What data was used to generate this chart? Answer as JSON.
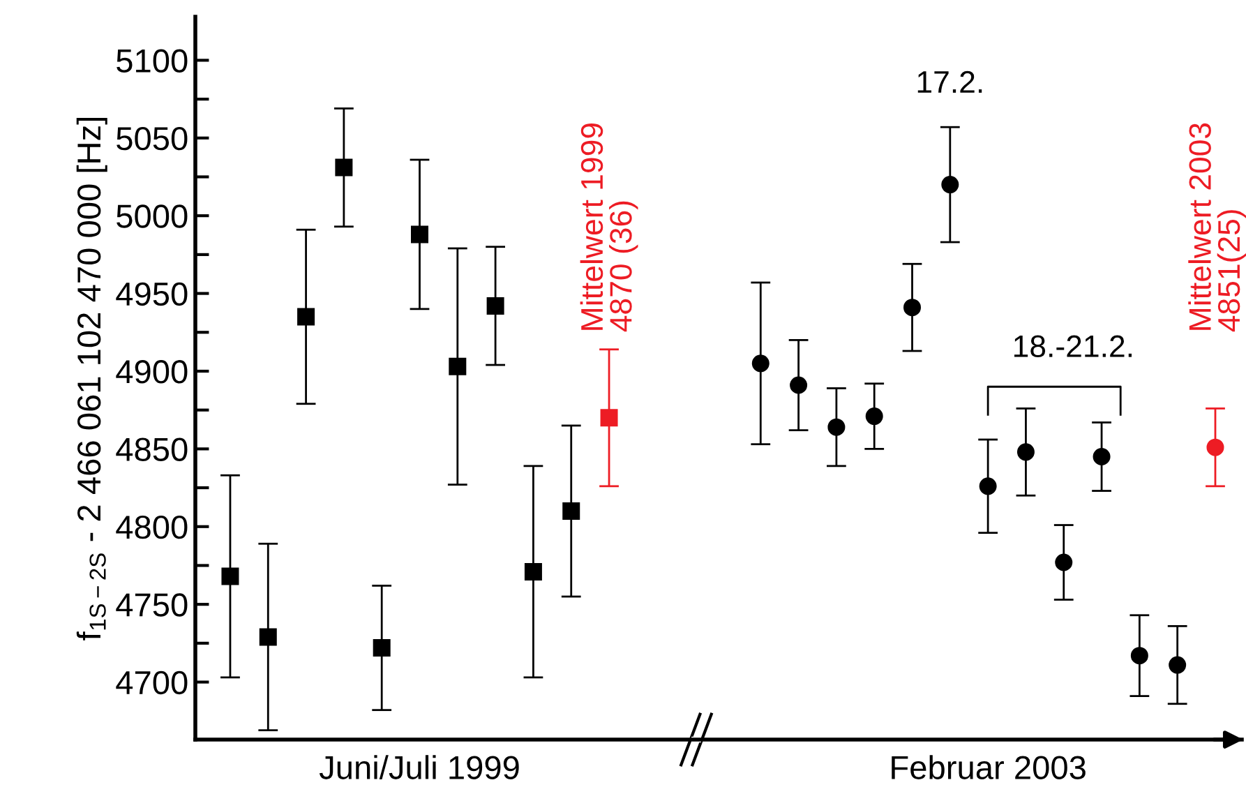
{
  "chart_data": {
    "type": "scatter",
    "ylabel": "f$_{1S−2S}$ - 2 466 061 102 470 000 [Hz]",
    "categories": [
      null,
      null,
      null,
      null,
      null,
      "Juni/Juli 1999",
      null,
      null,
      null,
      null,
      null,
      null,
      null,
      null,
      null,
      null,
      null,
      null,
      null,
      null,
      "Februar 2003",
      null,
      null,
      null,
      null,
      null,
      null
    ],
    "series": [
      {
        "color": "#000000",
        "marker": "square",
        "values": [
          4768,
          4729,
          4935,
          5031,
          4722,
          4988,
          4903,
          4942,
          4771,
          4810,
          null,
          null,
          null,
          null,
          null,
          null,
          null,
          null,
          null,
          null,
          null,
          null,
          null,
          null,
          null,
          null,
          null
        ],
        "errors": [
          65,
          60,
          56,
          38,
          40,
          48,
          76,
          38,
          68,
          55,
          null,
          null,
          null,
          null,
          null,
          null,
          null,
          null,
          null,
          null,
          null,
          null,
          null,
          null,
          null,
          null,
          null
        ]
      },
      {
        "color": "#ed1c24",
        "marker": "square",
        "values": [
          null,
          null,
          null,
          null,
          null,
          null,
          null,
          null,
          null,
          null,
          4870,
          null,
          null,
          null,
          null,
          null,
          null,
          null,
          null,
          null,
          null,
          null,
          null,
          null,
          null,
          null,
          null
        ],
        "errors": [
          null,
          null,
          null,
          null,
          null,
          null,
          null,
          null,
          null,
          null,
          44,
          null,
          null,
          null,
          null,
          null,
          null,
          null,
          null,
          null,
          null,
          null,
          null,
          null,
          null,
          null,
          null
        ]
      },
      {
        "color": "#000000",
        "marker": "circle",
        "values": [
          null,
          null,
          null,
          null,
          null,
          null,
          null,
          null,
          null,
          null,
          null,
          null,
          null,
          null,
          4905,
          4891,
          4864,
          4871,
          4941,
          5020,
          4826,
          4848,
          4777,
          4845,
          4717,
          4711,
          null
        ],
        "errors": [
          null,
          null,
          null,
          null,
          null,
          null,
          null,
          null,
          null,
          null,
          null,
          null,
          null,
          null,
          52,
          29,
          25,
          21,
          28,
          37,
          30,
          28,
          24,
          22,
          26,
          25,
          null
        ]
      },
      {
        "color": "#ed1c24",
        "marker": "circle",
        "values": [
          null,
          null,
          null,
          null,
          null,
          null,
          null,
          null,
          null,
          null,
          null,
          null,
          null,
          null,
          null,
          null,
          null,
          null,
          null,
          null,
          null,
          null,
          null,
          null,
          null,
          null,
          4851
        ],
        "errors": [
          null,
          null,
          null,
          null,
          null,
          null,
          null,
          null,
          null,
          null,
          null,
          null,
          null,
          null,
          null,
          null,
          null,
          null,
          null,
          null,
          null,
          null,
          null,
          null,
          null,
          null,
          25
        ]
      }
    ],
    "ylim": [
      4663,
      5128
    ],
    "yticks": [
      4700,
      {
        "value": 4725,
        "label": null
      },
      4750,
      {
        "value": 4775,
        "label": null
      },
      4800,
      {
        "value": 4825,
        "label": null
      },
      4850,
      {
        "value": 4875,
        "label": null
      },
      4900,
      {
        "value": 4925,
        "label": null
      },
      4950,
      {
        "value": 4975,
        "label": null
      },
      5000,
      {
        "value": 5025,
        "label": null
      },
      5050,
      {
        "value": 5075,
        "label": null
      },
      5100
    ],
    "annotations": [
      {
        "text": "Mittelwert 1999\n4870 (36)",
        "y": 4870
      },
      "Mittelwert 2003\n4851(25)",
      {
        "text": "17.2.",
        "y": 5020
      },
      "18.-21.2."
    ],
    "grid": false,
    "legend": false
  }
}
